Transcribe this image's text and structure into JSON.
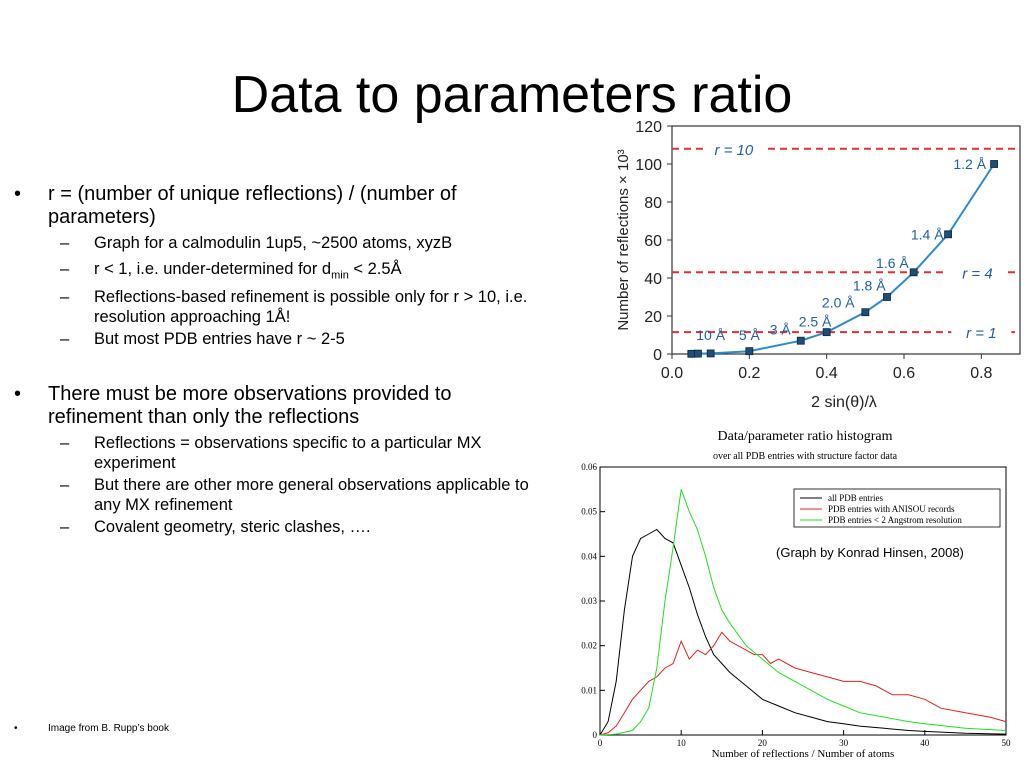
{
  "slide": {
    "title": "Data to parameters ratio",
    "bullet_char": "•",
    "dash_char": "–",
    "bullets": [
      {
        "text": "r = (number of unique reflections) / (number of parameters)",
        "sub": [
          "Graph for a calmodulin 1up5, ~2500 atoms, xyzB"
        ]
      },
      {
        "sub_rich": {
          "pre": "r < 1, i.e. under-determined for d",
          "subscript": "min",
          "post": " < 2.5Å"
        }
      },
      {
        "sub2": [
          "Reflections-based refinement is possible only for r > 10, i.e. resolution approaching 1Å!",
          "But most PDB entries have r ~ 2-5"
        ]
      },
      {
        "text": "There must be more observations provided to refinement than only the reflections",
        "sub": [
          "Reflections = observations specific to a particular MX  experiment",
          "But there are other more general observations applicable to any MX refinement",
          "Covalent geometry, steric clashes, …."
        ]
      }
    ],
    "footnote": "Image from B. Rupp’s book",
    "credit": "(Graph by Konrad Hinsen, 2008)"
  },
  "chart_data": [
    {
      "type": "line",
      "xlabel": "2 sin(θ)/λ",
      "ylabel": "Number of reflections × 10³",
      "xlim": [
        0.0,
        0.9
      ],
      "ylim": [
        0,
        120
      ],
      "xticks": [
        "0.0",
        "0.2",
        "0.4",
        "0.6",
        "0.8"
      ],
      "yticks": [
        "0",
        "20",
        "40",
        "60",
        "80",
        "100",
        "120"
      ],
      "points": [
        {
          "x": 0.05,
          "y": 0.1
        },
        {
          "x": 0.067,
          "y": 0.2
        },
        {
          "x": 0.1,
          "y": 0.3
        },
        {
          "x": 0.2,
          "y": 1.5
        },
        {
          "x": 0.333,
          "y": 7
        },
        {
          "x": 0.4,
          "y": 11.5
        },
        {
          "x": 0.5,
          "y": 22
        },
        {
          "x": 0.556,
          "y": 30
        },
        {
          "x": 0.625,
          "y": 43
        },
        {
          "x": 0.714,
          "y": 63
        },
        {
          "x": 0.833,
          "y": 100
        }
      ],
      "point_labels": [
        {
          "text": "10 Å",
          "x": 0.1,
          "y": 10
        },
        {
          "text": "5 Å",
          "x": 0.2,
          "y": 10
        },
        {
          "text": "3 Å",
          "x": 0.28,
          "y": 13
        },
        {
          "text": "2.5 Å",
          "x": 0.37,
          "y": 17
        },
        {
          "text": "2.0 Å",
          "x": 0.43,
          "y": 27
        },
        {
          "text": "1.8 Å",
          "x": 0.51,
          "y": 36
        },
        {
          "text": "1.6 Å",
          "x": 0.57,
          "y": 48
        },
        {
          "text": "1.4 Å",
          "x": 0.66,
          "y": 63
        },
        {
          "text": "1.2 Å",
          "x": 0.77,
          "y": 100
        }
      ],
      "reference_lines": [
        {
          "label": "r = 10",
          "y": 108
        },
        {
          "label": "r = 4",
          "y": 43
        },
        {
          "label": "r = 1",
          "y": 11.5
        }
      ],
      "colors": {
        "curve": "#2a8bd0",
        "marker": "#1f4e79",
        "refline": "#e03030",
        "label": "#2060a0"
      }
    },
    {
      "type": "line",
      "title": "Data/parameter ratio histogram",
      "subtitle": "over all PDB entries with structure factor data",
      "xlabel": "Number of reflections / Number of atoms",
      "xlim": [
        0,
        50
      ],
      "ylim": [
        0,
        0.06
      ],
      "xticks": [
        "0",
        "10",
        "20",
        "30",
        "40",
        "50"
      ],
      "yticks": [
        "0",
        "0.01",
        "0.02",
        "0.03",
        "0.04",
        "0.05",
        "0.06"
      ],
      "legend_position": "top-right",
      "series": [
        {
          "name": "all PDB entries",
          "color": "#000000",
          "x": [
            0,
            1,
            2,
            3,
            4,
            5,
            6,
            7,
            8,
            9,
            10,
            11,
            12,
            13,
            14,
            15,
            16,
            18,
            20,
            22,
            24,
            26,
            28,
            30,
            32,
            35,
            38,
            40,
            45,
            50
          ],
          "values": [
            0,
            0.003,
            0.012,
            0.028,
            0.04,
            0.044,
            0.045,
            0.046,
            0.044,
            0.043,
            0.038,
            0.033,
            0.027,
            0.022,
            0.018,
            0.016,
            0.014,
            0.011,
            0.008,
            0.0065,
            0.005,
            0.004,
            0.003,
            0.0025,
            0.002,
            0.0015,
            0.001,
            0.0008,
            0.0004,
            0.0002
          ]
        },
        {
          "name": "PDB entries with ANISOU records",
          "color": "#e02020",
          "x": [
            0,
            1,
            2,
            3,
            4,
            5,
            6,
            7,
            8,
            9,
            10,
            11,
            12,
            13,
            14,
            15,
            16,
            17,
            18,
            19,
            20,
            21,
            22,
            24,
            26,
            28,
            30,
            32,
            34,
            36,
            38,
            40,
            42,
            45,
            48,
            50
          ],
          "values": [
            0,
            0.0005,
            0.002,
            0.005,
            0.008,
            0.01,
            0.012,
            0.013,
            0.015,
            0.016,
            0.021,
            0.017,
            0.019,
            0.018,
            0.02,
            0.023,
            0.021,
            0.02,
            0.019,
            0.018,
            0.018,
            0.016,
            0.017,
            0.015,
            0.014,
            0.013,
            0.012,
            0.012,
            0.011,
            0.009,
            0.009,
            0.008,
            0.006,
            0.005,
            0.004,
            0.003
          ]
        },
        {
          "name": "PDB entries < 2 Angstrom resolution",
          "color": "#20e020",
          "x": [
            0,
            2,
            4,
            5,
            6,
            7,
            8,
            9,
            10,
            11,
            12,
            13,
            14,
            15,
            16,
            18,
            20,
            22,
            24,
            26,
            28,
            30,
            32,
            35,
            38,
            40,
            45,
            50
          ],
          "values": [
            0,
            0.0002,
            0.001,
            0.003,
            0.006,
            0.015,
            0.03,
            0.042,
            0.055,
            0.05,
            0.046,
            0.04,
            0.033,
            0.028,
            0.025,
            0.02,
            0.017,
            0.014,
            0.012,
            0.01,
            0.008,
            0.0065,
            0.005,
            0.004,
            0.003,
            0.0025,
            0.0015,
            0.001
          ]
        }
      ]
    }
  ]
}
